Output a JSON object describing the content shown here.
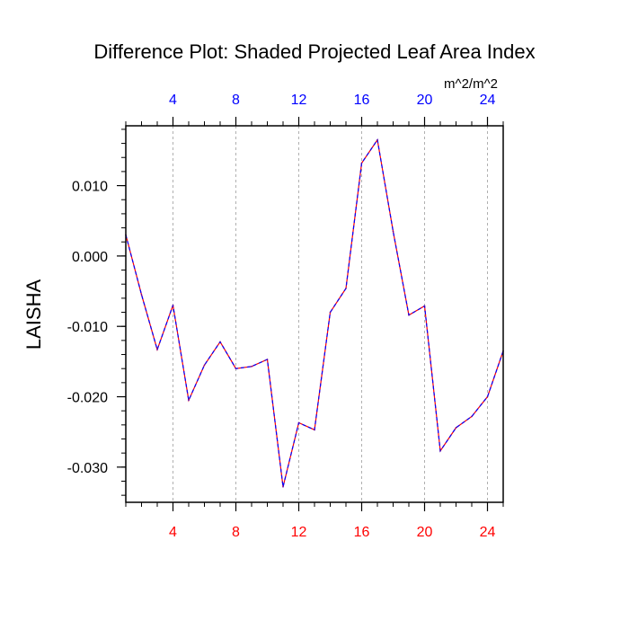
{
  "chart_data": {
    "type": "line",
    "title": "Difference Plot: Shaded Projected Leaf Area Index",
    "units": "m^2/m^2",
    "ylabel": "LAISHA",
    "xlabel": "",
    "xlim": [
      1,
      25
    ],
    "ylim": [
      -0.035,
      0.0185
    ],
    "x_ticks": [
      4,
      8,
      12,
      16,
      20,
      24
    ],
    "y_ticks": [
      0.01,
      0.0,
      -0.01,
      -0.02,
      -0.03
    ],
    "y_tick_labels": [
      "0.010",
      "0.000",
      "-0.010",
      "-0.020",
      "-0.030"
    ],
    "bottom_axis_color": "#ff0000",
    "top_axis_color": "#0000ff",
    "grid": "vertical dashed at major x ticks",
    "series": [
      {
        "name": "difference",
        "line_colors": [
          "#ff0000",
          "#0000ff"
        ],
        "line_style": "dashed overlay",
        "x": [
          1,
          2,
          3,
          4,
          5,
          6,
          7,
          8,
          9,
          10,
          11,
          12,
          13,
          14,
          15,
          16,
          17,
          18,
          19,
          20,
          21,
          22,
          23,
          24,
          25
        ],
        "values": [
          0.003,
          -0.0055,
          -0.0133,
          -0.007,
          -0.0205,
          -0.0155,
          -0.0122,
          -0.016,
          -0.0157,
          -0.0147,
          -0.0328,
          -0.0237,
          -0.0247,
          -0.008,
          -0.0046,
          0.0132,
          0.0165,
          0.0035,
          -0.0084,
          -0.0071,
          -0.0277,
          -0.0244,
          -0.0228,
          -0.02,
          -0.0135
        ]
      }
    ]
  }
}
